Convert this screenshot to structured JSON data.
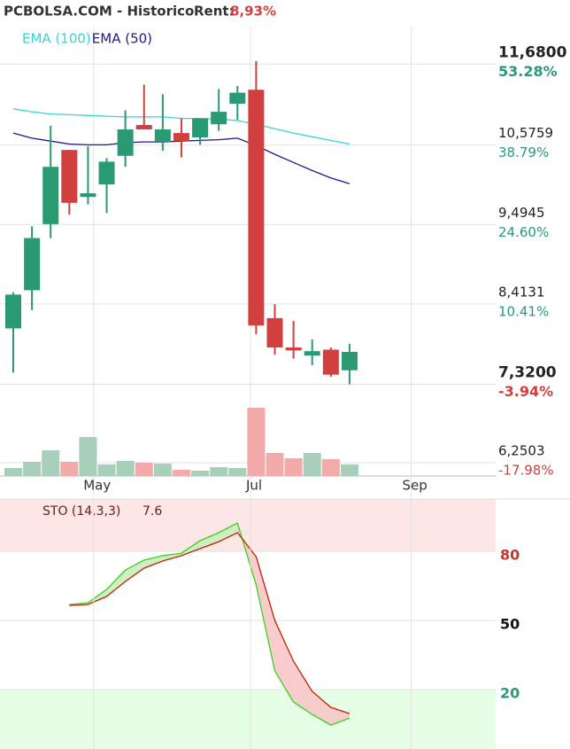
{
  "header": {
    "title": "PCBOLSA.COM - Historico",
    "rent_label": "Rent:",
    "rent_value": "8,93%"
  },
  "chart_data": [
    {
      "type": "candlestick",
      "x": [
        0,
        1,
        2,
        3,
        4,
        5,
        6,
        7,
        8,
        9,
        10,
        11,
        12,
        13,
        14,
        15,
        16,
        17,
        18
      ],
      "open": [
        8.08,
        8.6,
        9.5,
        10.51,
        9.87,
        10.04,
        10.43,
        10.85,
        10.62,
        10.74,
        10.68,
        10.86,
        11.14,
        11.33,
        8.22,
        7.82,
        7.71,
        7.79,
        7.51
      ],
      "high": [
        8.57,
        9.47,
        10.84,
        10.51,
        10.56,
        10.4,
        11.05,
        11.4,
        11.27,
        10.94,
        10.94,
        11.34,
        11.38,
        11.72,
        8.41,
        8.18,
        7.93,
        7.82,
        7.87
      ],
      "low": [
        7.48,
        8.33,
        9.31,
        9.63,
        9.77,
        9.65,
        10.28,
        10.79,
        10.5,
        10.41,
        10.58,
        10.77,
        10.92,
        8.0,
        7.72,
        7.67,
        7.58,
        7.42,
        7.32
      ],
      "close": [
        8.54,
        9.31,
        10.28,
        9.79,
        9.92,
        10.35,
        10.79,
        10.79,
        10.79,
        10.63,
        10.94,
        11.03,
        11.29,
        8.12,
        7.82,
        7.78,
        7.77,
        7.45,
        7.76
      ],
      "up_color": "#2a9a72",
      "down_color": "#d23f3f",
      "series": [
        {
          "name": "EMA (100)",
          "color": "#33d6d6",
          "values": [
            11.07,
            11.03,
            11.0,
            10.99,
            10.98,
            10.97,
            10.96,
            10.96,
            10.96,
            10.94,
            10.94,
            10.93,
            10.91,
            10.86,
            10.8,
            10.74,
            10.69,
            10.64,
            10.59
          ]
        },
        {
          "name": "EMA (50)",
          "color": "#1a1a8c",
          "values": [
            10.74,
            10.67,
            10.63,
            10.59,
            10.58,
            10.58,
            10.61,
            10.62,
            10.62,
            10.63,
            10.64,
            10.65,
            10.67,
            10.57,
            10.45,
            10.34,
            10.23,
            10.13,
            10.05
          ]
        }
      ],
      "volume": {
        "values": [
          9,
          16,
          29,
          16,
          44,
          13,
          17,
          15,
          14,
          7,
          6,
          10,
          9,
          77,
          26,
          20,
          26,
          19,
          13
        ],
        "up_color": "#a8cfba",
        "down_color": "#f3aaaa"
      },
      "xlim": [
        -0.71,
        25.82
      ],
      "xticks": [
        {
          "value": 4.3,
          "label": "May"
        },
        {
          "value": 12.7,
          "label": "Jul"
        },
        {
          "value": 21.3,
          "label": "Sep"
        }
      ],
      "ylim": [
        6.07,
        12.19
      ],
      "yticks": [
        {
          "value": 11.68,
          "label": "11,6800"
        },
        {
          "value": 10.5759,
          "label": "10,5759"
        },
        {
          "value": 9.4945,
          "label": "9,4945"
        },
        {
          "value": 8.4131,
          "label": "8,4131"
        },
        {
          "value": 7.32,
          "label": "7,3200"
        },
        {
          "value": 6.2503,
          "label": "6,2503"
        }
      ],
      "ytick_changes": [
        "53.28%",
        "38.79%",
        "24.60%",
        "10.41%",
        "-3.94%",
        "-17.98%"
      ],
      "grid": true
    },
    {
      "type": "line",
      "title": "STO (14,3,3)",
      "last_value": 7.6,
      "x": [
        0,
        1,
        2,
        3,
        4,
        5,
        6,
        7,
        8,
        9,
        10,
        11,
        12,
        13,
        14,
        15,
        16,
        17,
        18
      ],
      "series": [
        {
          "name": "%K",
          "color": "#3ccf1e",
          "values": [
            null,
            null,
            null,
            56.9,
            57.7,
            63.5,
            71.9,
            76.2,
            78.1,
            79.2,
            84.6,
            88.1,
            92.3,
            65.4,
            28.1,
            14.6,
            9.2,
            4.6,
            7.6
          ]
        },
        {
          "name": "%D",
          "color": "#c81e00",
          "values": [
            null,
            null,
            null,
            56.5,
            56.9,
            60.4,
            66.9,
            72.7,
            75.8,
            78.1,
            81.2,
            84.2,
            88.1,
            77.7,
            50.0,
            32.3,
            19.2,
            12.3,
            9.6
          ]
        }
      ],
      "xlim": [
        -0.71,
        25.82
      ],
      "ylim": [
        -5.8,
        102.7
      ],
      "yticks": [
        20,
        50,
        80
      ],
      "ytick_colors": [
        "#2a9a72",
        "#111111",
        "#c0392b"
      ],
      "grid": true
    }
  ]
}
